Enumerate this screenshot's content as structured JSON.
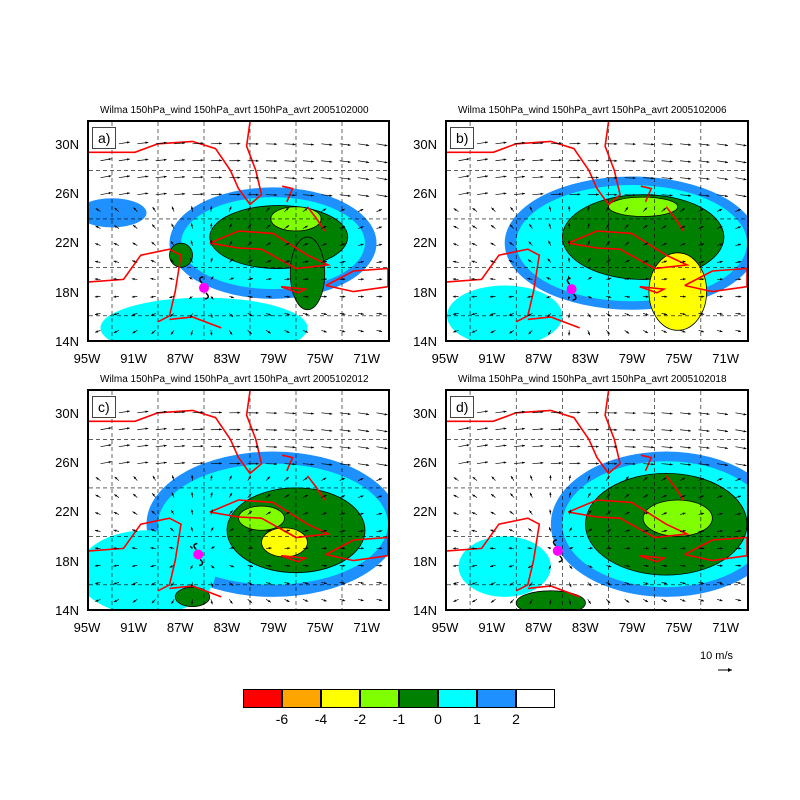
{
  "legend": {
    "bins": [
      {
        "color": "#ff0000"
      },
      {
        "color": "#ffa500"
      },
      {
        "color": "#ffff00"
      },
      {
        "color": "#7fff00"
      },
      {
        "color": "#008000"
      },
      {
        "color": "#00ffff"
      },
      {
        "color": "#1e90ff"
      },
      {
        "color": "#ffffff"
      }
    ],
    "labels": [
      "-6",
      "-4",
      "-2",
      "-1",
      "0",
      "1",
      "2"
    ]
  },
  "ref_vector_label": "10 m/s",
  "axes": {
    "lat_labels": [
      "30N",
      "26N",
      "22N",
      "18N",
      "14N"
    ],
    "lon_labels": [
      "95W",
      "91W",
      "87W",
      "83W",
      "79W",
      "75W",
      "71W"
    ]
  },
  "panels": [
    {
      "label": "a)",
      "title": "Wilma 150hPa_wind 150hPa_avrt 150hPa_avrt 2005102000",
      "storm_center": {
        "lon": -85.0,
        "lat": 18.3
      }
    },
    {
      "label": "b)",
      "title": "Wilma 150hPa_wind 150hPa_avrt 150hPa_avrt 2005102006",
      "storm_center": {
        "lon": -84.2,
        "lat": 18.2
      }
    },
    {
      "label": "c)",
      "title": "Wilma 150hPa_wind 150hPa_avrt 150hPa_avrt 2005102012",
      "storm_center": {
        "lon": -85.5,
        "lat": 18.5
      }
    },
    {
      "label": "d)",
      "title": "Wilma 150hPa_wind 150hPa_avrt 150hPa_avrt 2005102018",
      "storm_center": {
        "lon": -85.4,
        "lat": 18.8
      }
    }
  ]
}
